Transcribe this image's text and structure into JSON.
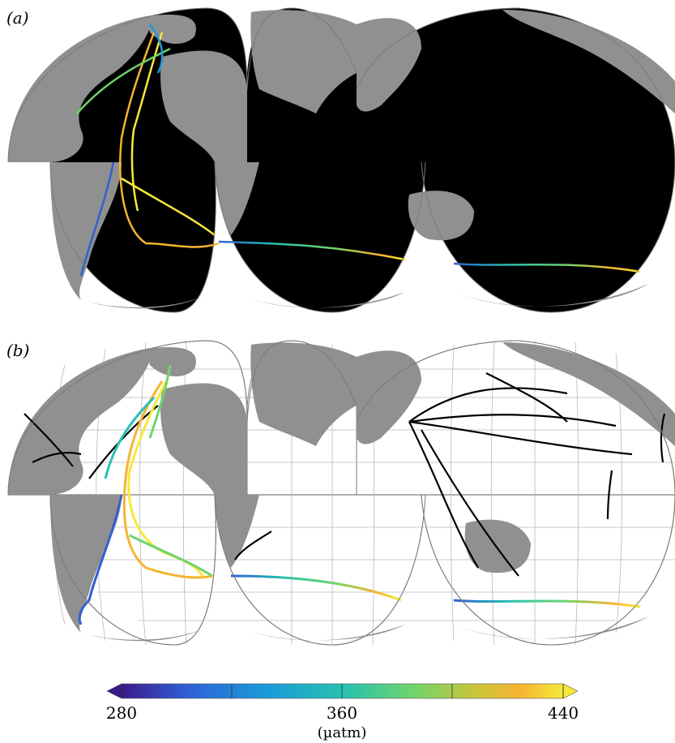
{
  "panels": [
    {
      "label": "(a)",
      "description_key": "all-cruise-tracks"
    },
    {
      "label": "(b)",
      "description_key": "selected-tracks"
    }
  ],
  "colorbar": {
    "ticks": [
      "280",
      "360",
      "440"
    ],
    "units": "(µatm)",
    "range": [
      280,
      440
    ],
    "extend": "both",
    "colormap": "viridis-like",
    "stops": [
      "#3b1a8a",
      "#2f60d6",
      "#1b9bd8",
      "#26c1b1",
      "#6fd46b",
      "#e8c43a",
      "#f6b431",
      "#f7e83a"
    ]
  },
  "colors": {
    "land": "#909090",
    "ocean_a": "#000000",
    "ocean_b": "#ffffff",
    "track_b": "#000000",
    "grid": "#b8b8b8",
    "outline": "#7a7a7a"
  },
  "projection": "interrupted-goode-homolosine"
}
